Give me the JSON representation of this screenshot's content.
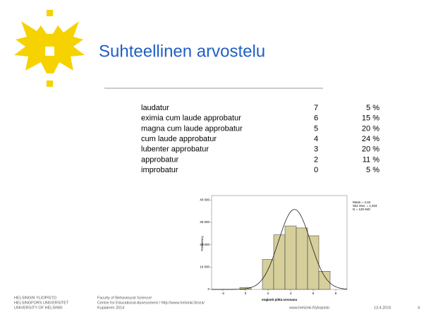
{
  "header": {
    "title": "Suhteellinen arvostelu"
  },
  "table": {
    "rows": [
      [
        "laudatur",
        "7",
        "5 %"
      ],
      [
        "eximia cum laude approbatur",
        "6",
        "15 %"
      ],
      [
        "magna cum laude approbatur",
        "5",
        "20 %"
      ],
      [
        "cum laude approbatur",
        "4",
        "24 %"
      ],
      [
        "lubenter approbatur",
        "3",
        "20 %"
      ],
      [
        "approbatur",
        "2",
        "11 %"
      ],
      [
        "improbatur",
        "0",
        "5 %"
      ]
    ]
  },
  "chart_data": {
    "type": "histogram",
    "xlabel": "englanti pitkä arvosana",
    "ylabel": "Frequency",
    "bins": [
      -0.5,
      0.5,
      1.5,
      2.5,
      3.5,
      4.5,
      5.5,
      6.5,
      7.5
    ],
    "values": [
      900,
      0,
      13400,
      24400,
      28400,
      27500,
      24000,
      8100
    ],
    "color": "#d6cf9c",
    "xlim": [
      -3,
      9
    ],
    "xticks": [
      -2,
      0,
      2,
      4,
      6,
      8
    ],
    "ylim": [
      0,
      42000
    ],
    "yticks": [
      0,
      {
        "value": 10000,
        "label": "10 000"
      },
      {
        "value": 20000,
        "label": "20 000"
      },
      {
        "value": 30000,
        "label": "30 000"
      },
      {
        "value": 40000,
        "label": "40 000"
      }
    ],
    "stats": [
      {
        "value": 4.34,
        "label": "Mean = 4,34"
      },
      {
        "value": 1.404,
        "label": "Std. Dev. = 1,404"
      },
      {
        "value": 125940,
        "label": "N = 125 940"
      }
    ]
  },
  "footer": {
    "logo": [
      "HELSINGIN YLIOPISTO",
      "HELSINGFORS UNIVERSITET",
      "UNIVERSITY OF HELSINKI"
    ],
    "source": [
      "Faculty of Behavioural Science/",
      "Centre for Educational Assessment / http://www.helsinki.fi/cea/",
      "Kupiainen 2014"
    ],
    "url": "www.helsinki.fi/yliopisto",
    "date": "13.4.2015",
    "page": "4"
  }
}
